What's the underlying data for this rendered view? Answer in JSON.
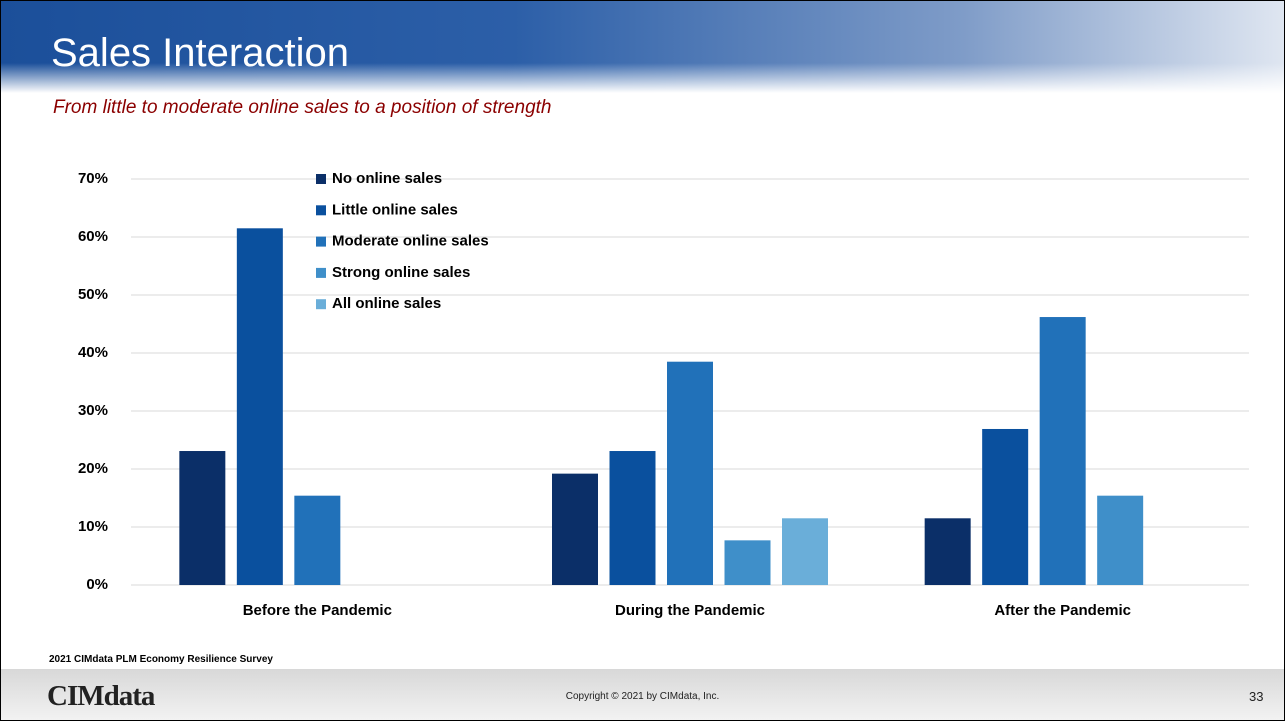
{
  "slide": {
    "title": "Sales Interaction",
    "subtitle": "From little to moderate online sales to a position of strength",
    "source": "2021 CIMdata PLM Economy Resilience Survey",
    "logo": "CIMdata",
    "copyright": "Copyright © 2021 by CIMdata, Inc.",
    "page_number": "33"
  },
  "chart_data": {
    "type": "bar",
    "categories": [
      "Before the Pandemic",
      "During the Pandemic",
      "After the Pandemic"
    ],
    "series": [
      {
        "name": "No online sales",
        "color": "#0b2f68",
        "values": [
          23.1,
          19.2,
          11.5
        ]
      },
      {
        "name": "Little online sales",
        "color": "#0a509e",
        "values": [
          61.5,
          23.1,
          26.9
        ]
      },
      {
        "name": "Moderate online sales",
        "color": "#2171b9",
        "values": [
          15.4,
          38.5,
          46.2
        ]
      },
      {
        "name": "Strong online sales",
        "color": "#3f8fc9",
        "values": [
          0,
          7.7,
          15.4
        ]
      },
      {
        "name": "All online sales",
        "color": "#6aaed9",
        "values": [
          0,
          11.5,
          0
        ]
      }
    ],
    "ylim": [
      0,
      70
    ],
    "yticks": [
      {
        "value": 0,
        "label": "0%"
      },
      {
        "value": 10,
        "label": "10%"
      },
      {
        "value": 20,
        "label": "20%"
      },
      {
        "value": 30,
        "label": "30%"
      },
      {
        "value": 40,
        "label": "40%"
      },
      {
        "value": 50,
        "label": "50%"
      },
      {
        "value": 60,
        "label": "60%"
      },
      {
        "value": 70,
        "label": "70%"
      }
    ],
    "grid": true,
    "legend": "top-left"
  }
}
